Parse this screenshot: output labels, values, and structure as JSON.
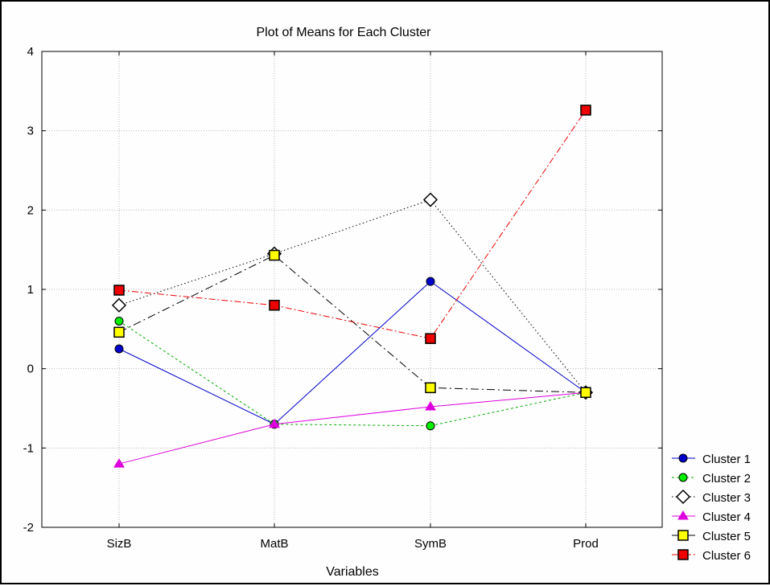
{
  "chart_data": {
    "type": "line",
    "title": "Plot of Means for Each Cluster",
    "xlabel": "Variables",
    "ylabel": "",
    "categories": [
      "SizB",
      "MatB",
      "SymB",
      "Prod"
    ],
    "ylim": [
      -2,
      4
    ],
    "yticks": [
      -2,
      -1,
      0,
      1,
      2,
      3,
      4
    ],
    "grid": true,
    "legend_position": "bottom-right outside",
    "series": [
      {
        "name": "Cluster  1",
        "values": [
          0.25,
          -0.7,
          1.1,
          -0.3
        ],
        "color": "#0000cc",
        "marker": "circle",
        "marker_fill": "#0000cc",
        "dash": ""
      },
      {
        "name": "Cluster  2",
        "values": [
          0.6,
          -0.7,
          -0.72,
          -0.3
        ],
        "color": "#00aa00",
        "marker": "circle",
        "marker_fill": "#00ee00",
        "dash": "3,3"
      },
      {
        "name": "Cluster  3",
        "values": [
          0.8,
          1.45,
          2.13,
          -0.3
        ],
        "color": "#000000",
        "marker": "diamond",
        "marker_fill": "#ffffff",
        "dash": "1.5,3"
      },
      {
        "name": "Cluster  4",
        "values": [
          -1.2,
          -0.7,
          -0.48,
          -0.3
        ],
        "color": "#dd00dd",
        "marker": "triangle",
        "marker_fill": "#dd00dd",
        "dash": ""
      },
      {
        "name": "Cluster  5",
        "values": [
          0.46,
          1.43,
          -0.24,
          -0.3
        ],
        "color": "#000000",
        "marker": "square",
        "marker_fill": "#ffff00",
        "dash": "10,4,2,4"
      },
      {
        "name": "Cluster  6",
        "values": [
          0.99,
          0.8,
          0.38,
          3.26
        ],
        "color": "#ee0000",
        "marker": "square",
        "marker_fill": "#ee0000",
        "dash": "8,3,2,3"
      }
    ]
  }
}
